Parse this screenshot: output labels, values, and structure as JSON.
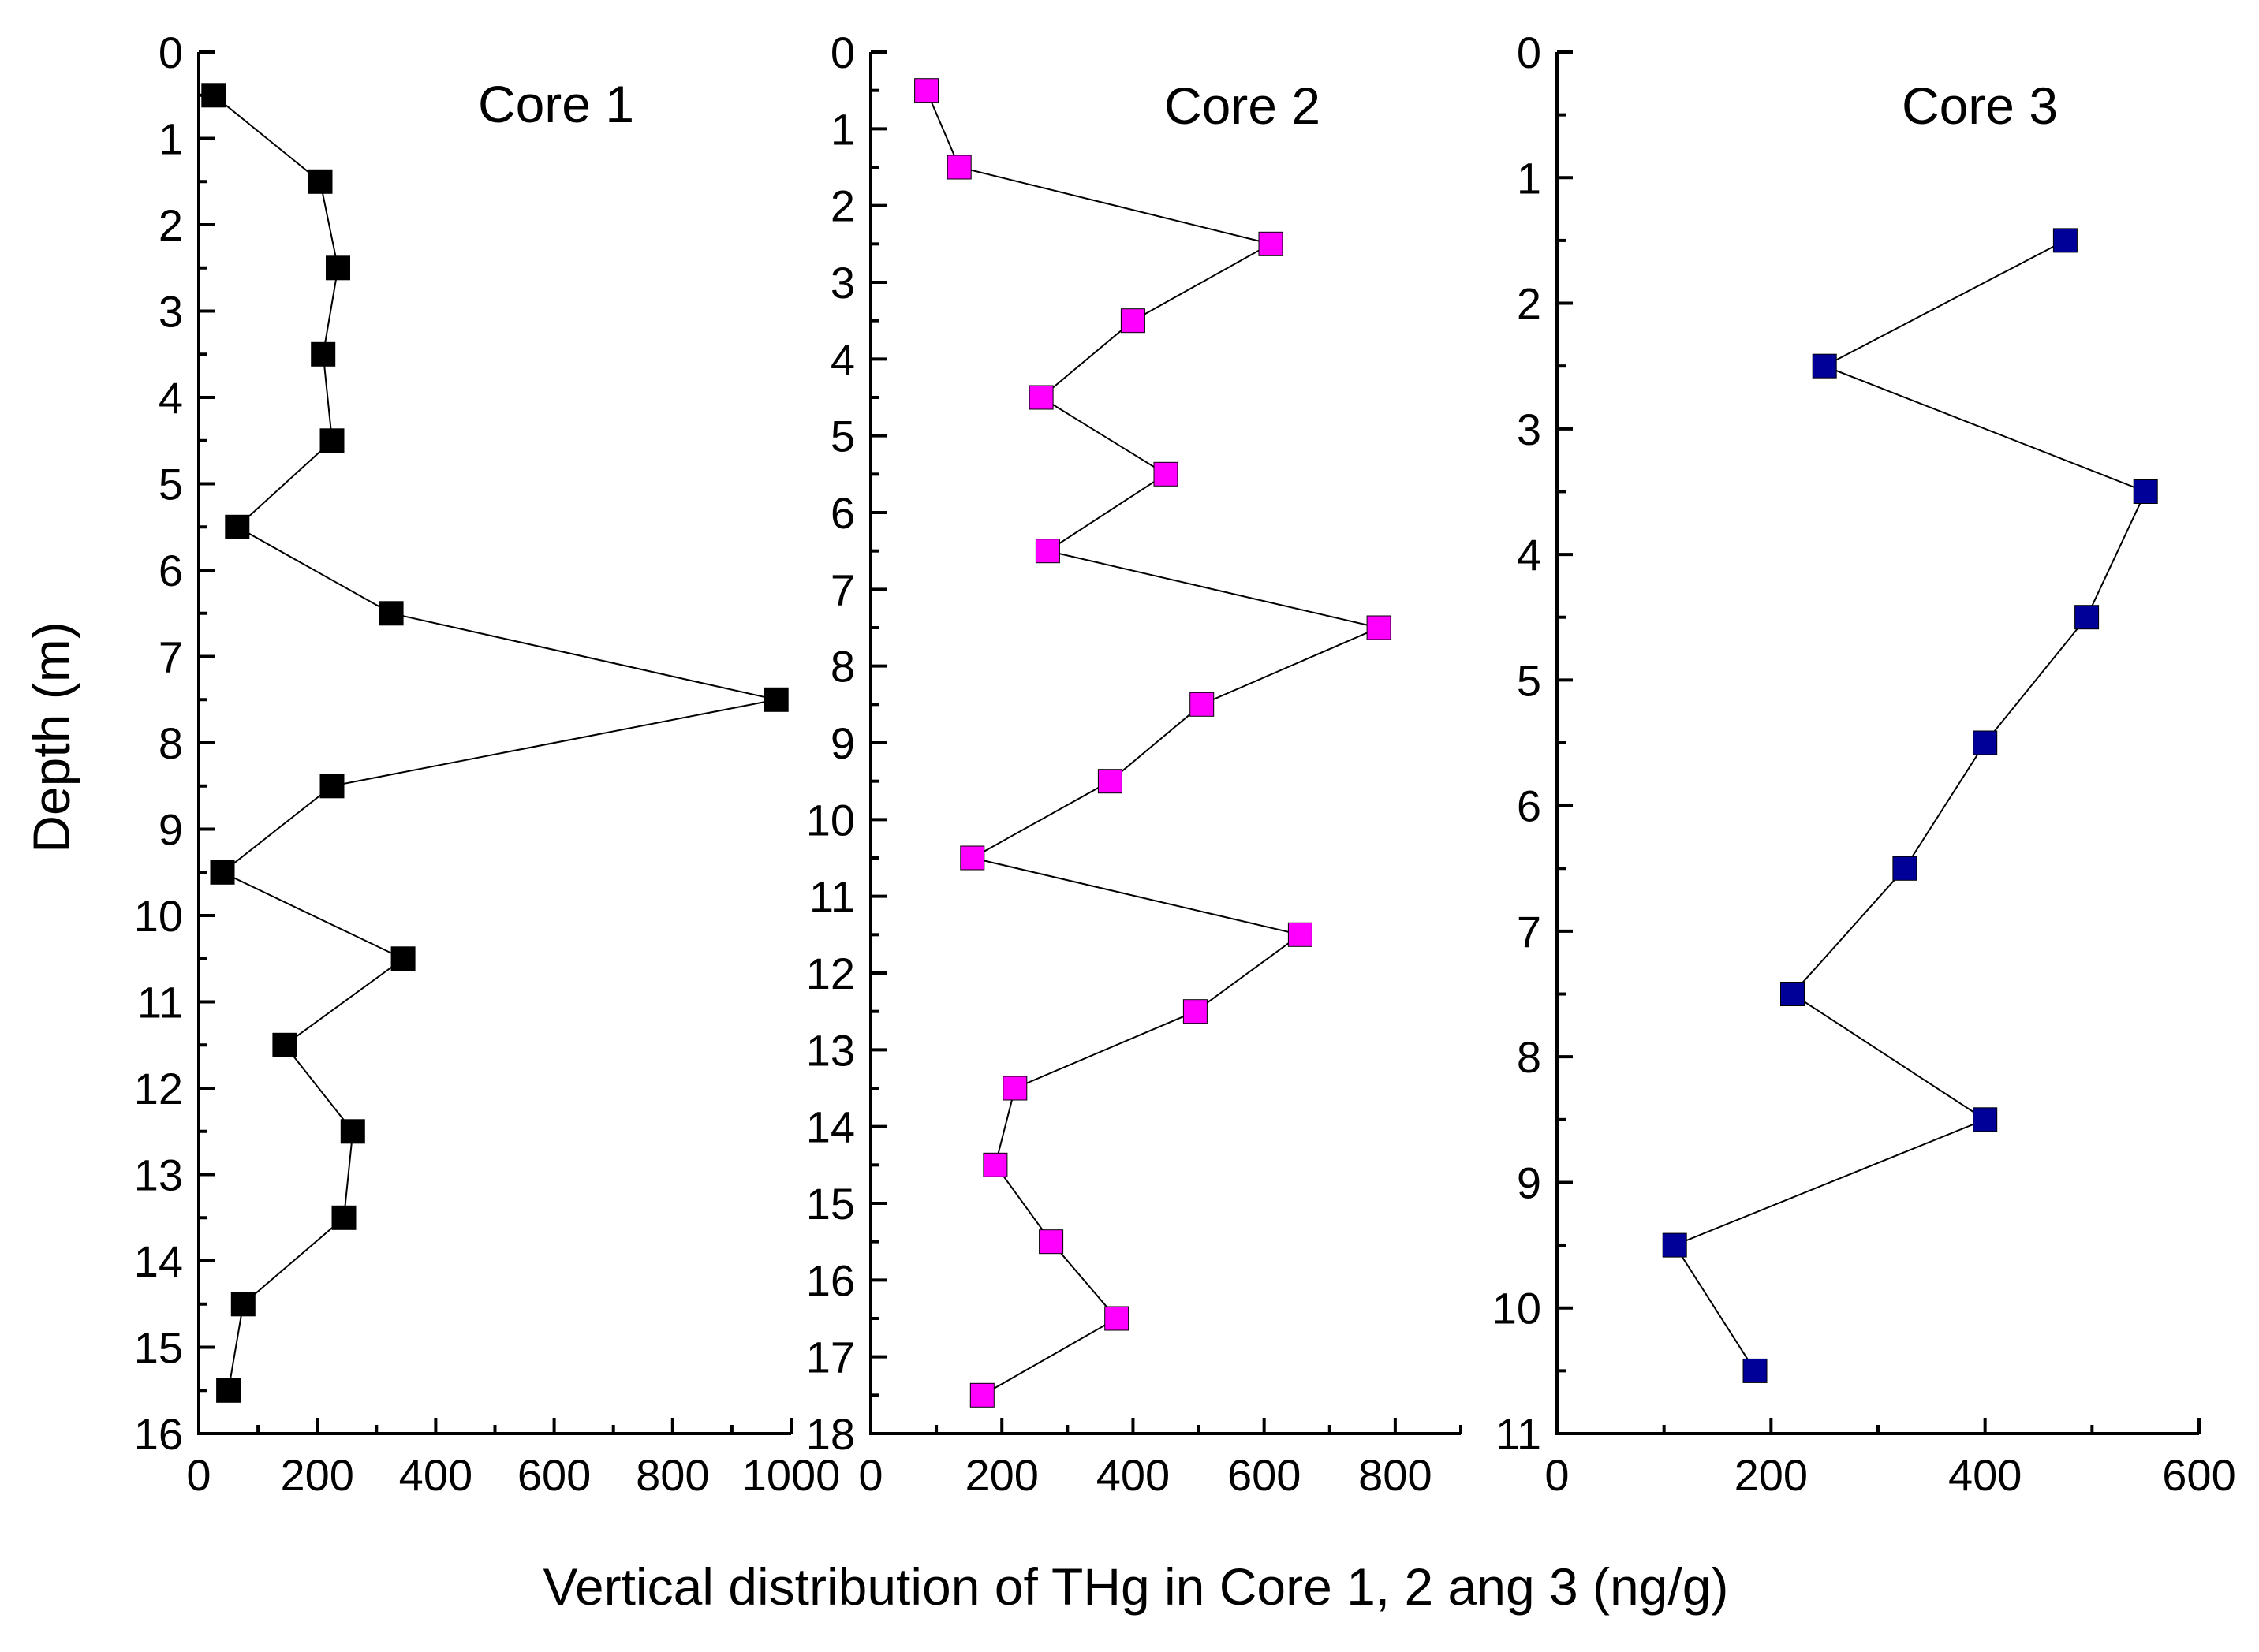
{
  "figure": {
    "ylabel": "Depth (m)",
    "xlabel": "Vertical distribution of THg in Core 1, 2 ang 3 (ng/g)"
  },
  "chart_data": [
    {
      "type": "scatter",
      "title": "Core 1",
      "xlim": [
        0,
        1000
      ],
      "ylim": [
        0,
        16
      ],
      "y_inverted": true,
      "xticks": [
        0,
        200,
        400,
        600,
        800,
        1000
      ],
      "xtick_labels": [
        "0",
        "200",
        "400",
        "600",
        "800",
        "1000"
      ],
      "yticks": [
        0,
        1,
        2,
        3,
        4,
        5,
        6,
        7,
        8,
        9,
        10,
        11,
        12,
        13,
        14,
        15,
        16
      ],
      "xlabel": "Vertical distribution of THg in Core 1, 2 ang 3 (ng/g)",
      "ylabel": "Depth (m)",
      "series": [
        {
          "name": "Core 1",
          "color": "#000000",
          "marker": "square",
          "connected": true,
          "x": [
            25,
            205,
            235,
            210,
            225,
            65,
            325,
            975,
            225,
            40,
            345,
            145,
            260,
            245,
            75,
            50
          ],
          "y": [
            0.5,
            1.5,
            2.5,
            3.5,
            4.5,
            5.5,
            6.5,
            7.5,
            8.5,
            9.5,
            10.5,
            11.5,
            12.5,
            13.5,
            14.5,
            15.5
          ]
        }
      ]
    },
    {
      "type": "scatter",
      "title": "Core 2",
      "xlim": [
        0,
        900
      ],
      "ylim": [
        0,
        18
      ],
      "y_inverted": true,
      "xticks": [
        0,
        200,
        400,
        600,
        800
      ],
      "xtick_labels": [
        "0",
        "200",
        "400",
        "600",
        "800"
      ],
      "yticks": [
        0,
        1,
        2,
        3,
        4,
        5,
        6,
        7,
        8,
        9,
        10,
        11,
        12,
        13,
        14,
        15,
        16,
        17,
        18
      ],
      "series": [
        {
          "name": "Core 2",
          "color": "#ff00ff",
          "marker": "square",
          "connected": true,
          "x": [
            85,
            135,
            610,
            400,
            260,
            450,
            270,
            775,
            505,
            365,
            155,
            655,
            495,
            220,
            190,
            275,
            375,
            170
          ],
          "y": [
            0.5,
            1.5,
            2.5,
            3.5,
            4.5,
            5.5,
            6.5,
            7.5,
            8.5,
            9.5,
            10.5,
            11.5,
            12.5,
            13.5,
            14.5,
            15.5,
            16.5,
            17.5
          ]
        }
      ]
    },
    {
      "type": "scatter",
      "title": "Core 3",
      "xlim": [
        0,
        600
      ],
      "ylim": [
        0,
        11
      ],
      "y_inverted": true,
      "xticks": [
        0,
        200,
        400,
        600
      ],
      "xtick_labels": [
        "0",
        "200",
        "400",
        "600"
      ],
      "yticks": [
        0,
        1,
        2,
        3,
        4,
        5,
        6,
        7,
        8,
        9,
        10,
        11
      ],
      "series": [
        {
          "name": "Core 3",
          "color": "#000099",
          "marker": "square",
          "connected": true,
          "x": [
            475,
            250,
            550,
            495,
            400,
            325,
            220,
            400,
            110,
            185
          ],
          "y": [
            1.5,
            2.5,
            3.5,
            4.5,
            5.5,
            6.5,
            7.5,
            8.5,
            9.5,
            10.5
          ]
        }
      ]
    }
  ]
}
